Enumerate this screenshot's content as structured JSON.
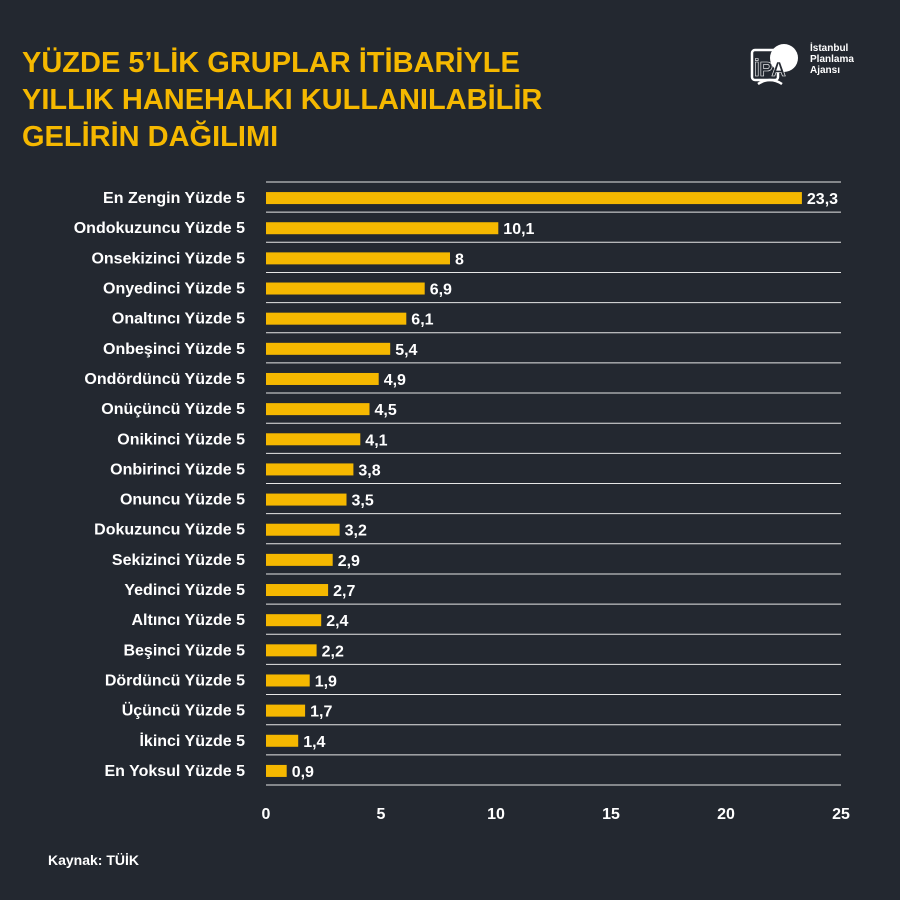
{
  "header": {
    "title_lines": [
      "YÜZDE 5’LİK GRUPLAR İTİBARİYLE",
      "YILLIK HANEHALKI KULLANILABİLİR",
      "GELİRİN DAĞILIMI"
    ]
  },
  "logo": {
    "mark": "İPA",
    "lines": [
      "İstanbul",
      "Planlama",
      "Ajansı"
    ]
  },
  "source": "Kaynak: TÜİK",
  "colors": {
    "background": "#232830",
    "accent": "#f5b800",
    "text": "#ffffff"
  },
  "chart_data": {
    "type": "bar",
    "orientation": "horizontal",
    "title": "YÜZDE 5’LİK GRUPLAR İTİBARİYLE YILLIK HANEHALKI KULLANILABİLİR GELİRİN DAĞILIMI",
    "categories": [
      "En Zengin Yüzde 5",
      "Ondokuzuncu Yüzde 5",
      "Onsekizinci Yüzde 5",
      "Onyedinci Yüzde 5",
      "Onaltıncı Yüzde 5",
      "Onbeşinci Yüzde 5",
      "Ondördüncü Yüzde 5",
      "Onüçüncü Yüzde 5",
      "Onikinci Yüzde 5",
      "Onbirinci Yüzde 5",
      "Onuncu Yüzde 5",
      "Dokuzuncu Yüzde 5",
      "Sekizinci Yüzde 5",
      "Yedinci Yüzde 5",
      "Altıncı Yüzde 5",
      "Beşinci Yüzde 5",
      "Dördüncü Yüzde 5",
      "Üçüncü Yüzde 5",
      "İkinci Yüzde 5",
      "En Yoksul Yüzde 5"
    ],
    "values": [
      23.3,
      10.1,
      8,
      6.9,
      6.1,
      5.4,
      4.9,
      4.5,
      4.1,
      3.8,
      3.5,
      3.2,
      2.9,
      2.7,
      2.4,
      2.2,
      1.9,
      1.7,
      1.4,
      0.9
    ],
    "value_labels": [
      "23,3",
      "10,1",
      "8",
      "6,9",
      "6,1",
      "5,4",
      "4,9",
      "4,5",
      "4,1",
      "3,8",
      "3,5",
      "3,2",
      "2,9",
      "2,7",
      "2,4",
      "2,2",
      "1,9",
      "1,7",
      "1,4",
      "0,9"
    ],
    "xlim": [
      0,
      25
    ],
    "xticks": [
      0,
      5,
      10,
      15,
      20,
      25
    ],
    "xlabel": "",
    "ylabel": "",
    "grid": "horizontal separators between categories",
    "legend": "none"
  }
}
